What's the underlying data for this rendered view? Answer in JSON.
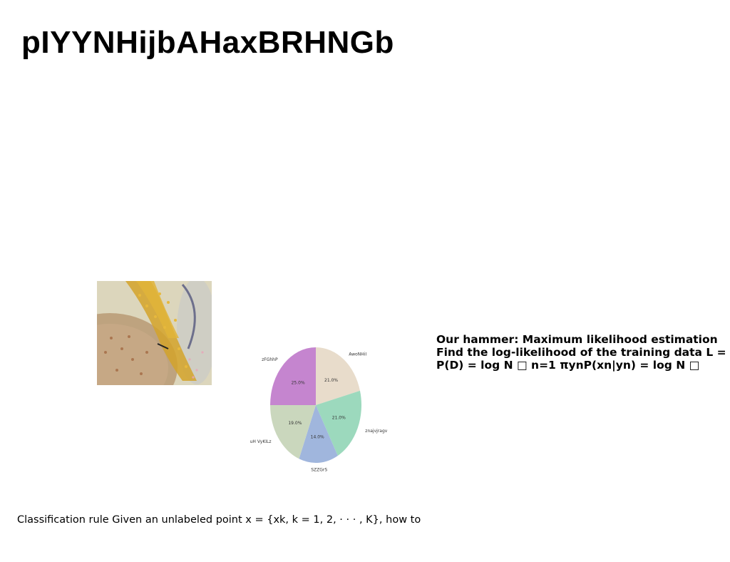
{
  "slide": {
    "title": "pIYYNHijbAHaxBRHNGb",
    "body_lines": [
      "Our hammer: Maximum likelihood estimation",
      "Find the log-likelihood of the training data L =",
      "P(D) = log N □ n=1 πynP(xn|yn) = log N □"
    ],
    "caption": "Classification rule Given an unlabeled point x = {xk, k = 1, 2, · · · , K}, how to"
  },
  "chart_data": {
    "type": "pie",
    "title": "",
    "slices": [
      {
        "label": "AwoNHiI",
        "value": 21.0,
        "display": "21.0%",
        "color": "#e8dccb"
      },
      {
        "label": "znajvjragv",
        "value": 21.0,
        "display": "21.0%",
        "color": "#9cd9bd"
      },
      {
        "label": "SZZGrS",
        "value": 14.0,
        "display": "14.0%",
        "color": "#a0b6dd"
      },
      {
        "label": "uH VyKILz",
        "value": 19.0,
        "display": "19.0%",
        "color": "#cad7bd"
      },
      {
        "label": "zFGhhP",
        "value": 25.0,
        "display": "25.0%",
        "color": "#c585cf"
      }
    ],
    "start_angle": "top",
    "direction": "clockwise"
  }
}
